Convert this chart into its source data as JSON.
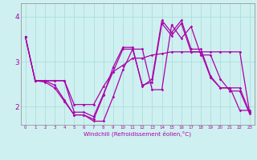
{
  "xlabel": "Windchill (Refroidissement éolien,°C)",
  "bg_color": "#cff0f0",
  "line_color": "#aa00aa",
  "grid_color": "#aadddd",
  "xlim": [
    -0.5,
    23.5
  ],
  "ylim": [
    1.6,
    4.3
  ],
  "yticks": [
    2,
    3,
    4
  ],
  "xticks": [
    0,
    1,
    2,
    3,
    4,
    5,
    6,
    7,
    8,
    9,
    10,
    11,
    12,
    13,
    14,
    15,
    16,
    17,
    18,
    19,
    20,
    21,
    22,
    23
  ],
  "lines": [
    {
      "x": [
        0,
        1,
        2,
        3,
        4,
        5,
        6,
        7,
        8,
        9,
        10,
        11,
        12,
        13,
        14,
        15,
        16,
        17,
        18,
        19,
        20,
        21,
        22,
        23
      ],
      "y": [
        3.55,
        2.58,
        2.58,
        2.48,
        2.15,
        1.82,
        1.82,
        1.72,
        2.25,
        2.88,
        3.32,
        3.32,
        2.45,
        2.62,
        3.92,
        3.65,
        3.92,
        3.28,
        3.28,
        2.68,
        2.42,
        2.42,
        1.92,
        1.92
      ]
    },
    {
      "x": [
        0,
        1,
        2,
        3,
        4,
        5,
        6,
        7,
        8,
        9,
        10,
        11,
        12,
        13,
        14,
        15,
        16,
        17,
        18,
        19,
        20,
        21,
        22,
        23
      ],
      "y": [
        3.55,
        2.58,
        2.58,
        2.58,
        2.58,
        1.88,
        1.88,
        1.78,
        2.28,
        2.78,
        3.28,
        3.28,
        2.48,
        2.55,
        3.85,
        3.58,
        3.85,
        3.22,
        3.22,
        2.65,
        2.42,
        2.42,
        2.42,
        1.88
      ]
    },
    {
      "x": [
        0,
        1,
        2,
        3,
        4,
        5,
        6,
        7,
        8,
        9,
        10,
        11,
        12,
        13,
        14,
        15,
        16,
        17,
        18,
        19,
        20,
        21,
        22,
        23
      ],
      "y": [
        3.55,
        2.58,
        2.58,
        2.58,
        2.58,
        2.05,
        2.05,
        2.05,
        2.45,
        2.78,
        2.92,
        3.08,
        3.08,
        3.15,
        3.18,
        3.22,
        3.22,
        3.22,
        3.22,
        3.22,
        3.22,
        3.22,
        3.22,
        1.88
      ]
    },
    {
      "x": [
        1,
        2,
        3,
        4,
        5,
        6,
        7,
        8,
        9,
        10,
        11,
        12,
        13,
        14,
        15,
        16,
        17,
        18,
        19,
        20,
        21,
        22,
        23
      ],
      "y": [
        2.58,
        2.55,
        2.42,
        2.12,
        1.82,
        1.82,
        1.68,
        1.68,
        2.22,
        2.82,
        3.28,
        3.28,
        2.38,
        2.38,
        3.82,
        3.52,
        3.78,
        3.15,
        3.15,
        2.62,
        2.35,
        2.35,
        1.85
      ]
    }
  ]
}
